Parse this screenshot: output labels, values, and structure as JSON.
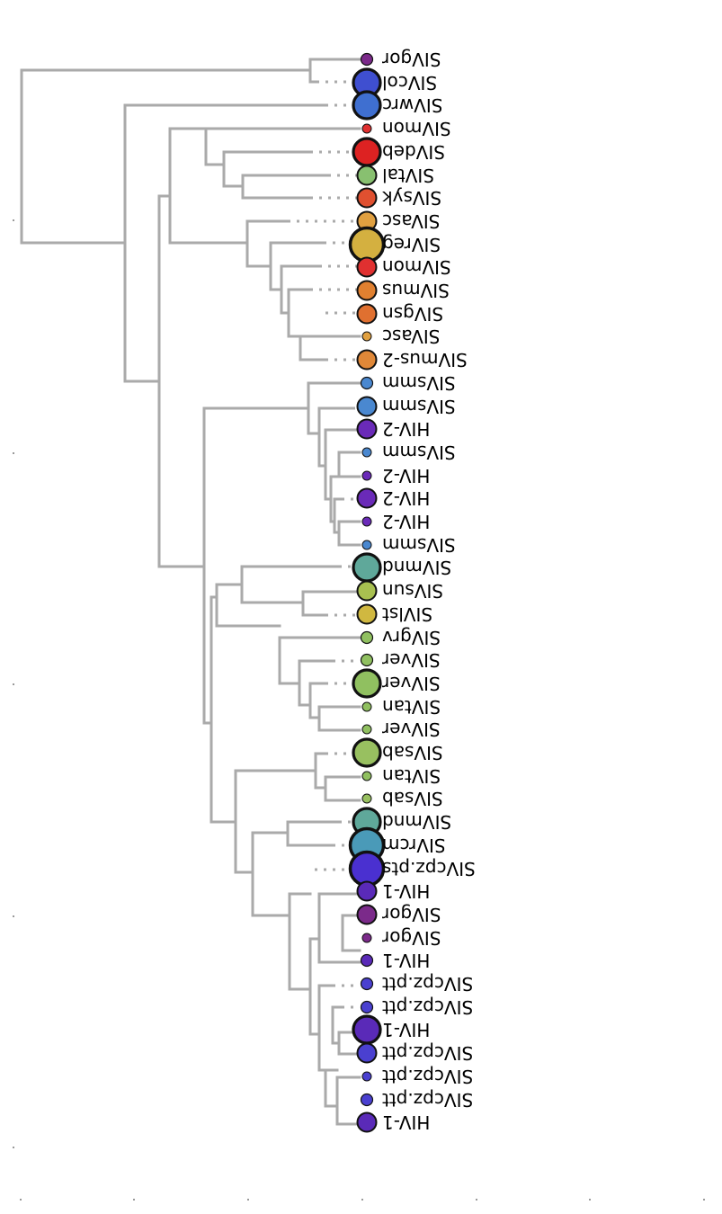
{
  "diagram": {
    "type": "phylogenetic-tree",
    "orientation": "rotated-180",
    "line_color": "#aaaaaa"
  },
  "leaves": [
    {
      "label": "SIVgor",
      "color": "#7b2a8a",
      "size": "small"
    },
    {
      "label": "SIVcol",
      "color": "#3f4fd0",
      "size": "large"
    },
    {
      "label": "SIVwrc",
      "color": "#3f6fd0",
      "size": "large"
    },
    {
      "label": "SIVmon",
      "color": "#e03030",
      "size": "tiny"
    },
    {
      "label": "SIVdeb",
      "color": "#dd2222",
      "size": "large"
    },
    {
      "label": "SIVtal",
      "color": "#88c070",
      "size": "medium"
    },
    {
      "label": "SIVsyk",
      "color": "#e05030",
      "size": "medium"
    },
    {
      "label": "SIVasc",
      "color": "#e0a040",
      "size": "medium"
    },
    {
      "label": "SIVreg",
      "color": "#d4b040",
      "size": "xlarge"
    },
    {
      "label": "SIVmon",
      "color": "#e03030",
      "size": "medium"
    },
    {
      "label": "SIVmus",
      "color": "#e08030",
      "size": "medium"
    },
    {
      "label": "SIVgsn",
      "color": "#e07030",
      "size": "medium"
    },
    {
      "label": "SIVasc",
      "color": "#e0a040",
      "size": "tiny"
    },
    {
      "label": "SIVmus-2",
      "color": "#e08838",
      "size": "medium"
    },
    {
      "label": "SIVsmm",
      "color": "#4a88d0",
      "size": "small"
    },
    {
      "label": "SIVsmm",
      "color": "#4a88d0",
      "size": "medium"
    },
    {
      "label": "HIV-2",
      "color": "#6a2ab8",
      "size": "medium"
    },
    {
      "label": "SIVsmm",
      "color": "#4a88d0",
      "size": "tiny"
    },
    {
      "label": "HIV-2",
      "color": "#6a2ab8",
      "size": "tiny"
    },
    {
      "label": "HIV-2",
      "color": "#6a2ab8",
      "size": "medium"
    },
    {
      "label": "HIV-2",
      "color": "#6a2ab8",
      "size": "tiny"
    },
    {
      "label": "SIVsmm",
      "color": "#4a88d0",
      "size": "tiny"
    },
    {
      "label": "SIVmnd",
      "color": "#5fa89a",
      "size": "large"
    },
    {
      "label": "SIVsun",
      "color": "#a8c050",
      "size": "medium"
    },
    {
      "label": "SIVlst",
      "color": "#d0b840",
      "size": "medium"
    },
    {
      "label": "SIVgrv",
      "color": "#90c060",
      "size": "small"
    },
    {
      "label": "SIVver",
      "color": "#90c060",
      "size": "small"
    },
    {
      "label": "SIVver",
      "color": "#90c060",
      "size": "large"
    },
    {
      "label": "SIVtan",
      "color": "#90c060",
      "size": "tiny"
    },
    {
      "label": "SIVver",
      "color": "#90c060",
      "size": "tiny"
    },
    {
      "label": "SIVsab",
      "color": "#98c060",
      "size": "large"
    },
    {
      "label": "SIVtan",
      "color": "#90c060",
      "size": "tiny"
    },
    {
      "label": "SIVsab",
      "color": "#98c060",
      "size": "tiny"
    },
    {
      "label": "SIVmnd",
      "color": "#5fa89a",
      "size": "large"
    },
    {
      "label": "SIVrcm",
      "color": "#4a9ab8",
      "size": "xlarge"
    },
    {
      "label": "SIVcpz.pts",
      "color": "#4a30d0",
      "size": "xlarge"
    },
    {
      "label": "HIV-1",
      "color": "#5a2ab8",
      "size": "medium"
    },
    {
      "label": "SIVgor",
      "color": "#7b2a8a",
      "size": "medium"
    },
    {
      "label": "SIVgor",
      "color": "#7b2a8a",
      "size": "tiny"
    },
    {
      "label": "HIV-1",
      "color": "#5a2ab8",
      "size": "small"
    },
    {
      "label": "SIVcpz.ptt",
      "color": "#4a40d0",
      "size": "small"
    },
    {
      "label": "SIVcpz.ptt",
      "color": "#4a40d0",
      "size": "small"
    },
    {
      "label": "HIV-1",
      "color": "#5a2ab8",
      "size": "large"
    },
    {
      "label": "SIVcpz.ptt",
      "color": "#4a40d0",
      "size": "medium"
    },
    {
      "label": "SIVcpz.ptt",
      "color": "#4a40d0",
      "size": "tiny"
    },
    {
      "label": "SIVcpz.ptt",
      "color": "#4a40d0",
      "size": "small"
    },
    {
      "label": "HIV-1",
      "color": "#5a2ab8",
      "size": "medium"
    }
  ]
}
